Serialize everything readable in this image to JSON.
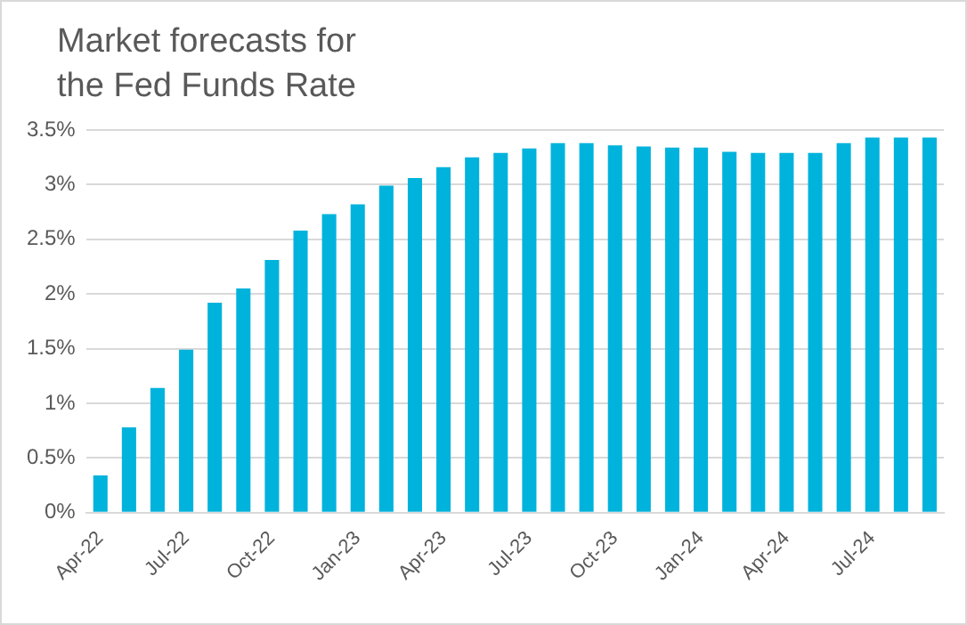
{
  "chart_data": {
    "type": "bar",
    "title": "Market forecasts for the Fed Funds Rate",
    "categories": [
      "Apr-22",
      null,
      null,
      "Jul-22",
      null,
      null,
      "Oct-22",
      null,
      null,
      "Jan-23",
      null,
      null,
      "Apr-23",
      null,
      null,
      "Jul-23",
      null,
      null,
      "Oct-23",
      null,
      null,
      "Jan-24",
      null,
      null,
      "Apr-24",
      null,
      null,
      "Jul-24",
      null,
      null
    ],
    "values": [
      0.34,
      0.78,
      1.14,
      1.49,
      1.92,
      2.05,
      2.31,
      2.58,
      2.73,
      2.82,
      2.99,
      3.06,
      3.16,
      3.25,
      3.29,
      3.33,
      3.38,
      3.38,
      3.36,
      3.35,
      3.34,
      3.34,
      3.3,
      3.29,
      3.29,
      3.29,
      3.38,
      3.43,
      3.43,
      3.43
    ],
    "color": "#00b3dc",
    "ylim": [
      0,
      3.5
    ],
    "yticks": [
      {
        "value": 0,
        "label": "0%"
      },
      {
        "value": 0.5,
        "label": "0.5%"
      },
      {
        "value": 1,
        "label": "1%"
      },
      {
        "value": 1.5,
        "label": "1.5%"
      },
      {
        "value": 2,
        "label": "2%"
      },
      {
        "value": 2.5,
        "label": "2.5%"
      },
      {
        "value": 3,
        "label": "3%"
      },
      {
        "value": 3.5,
        "label": "3.5%"
      }
    ],
    "grid": "y",
    "legend": false
  }
}
